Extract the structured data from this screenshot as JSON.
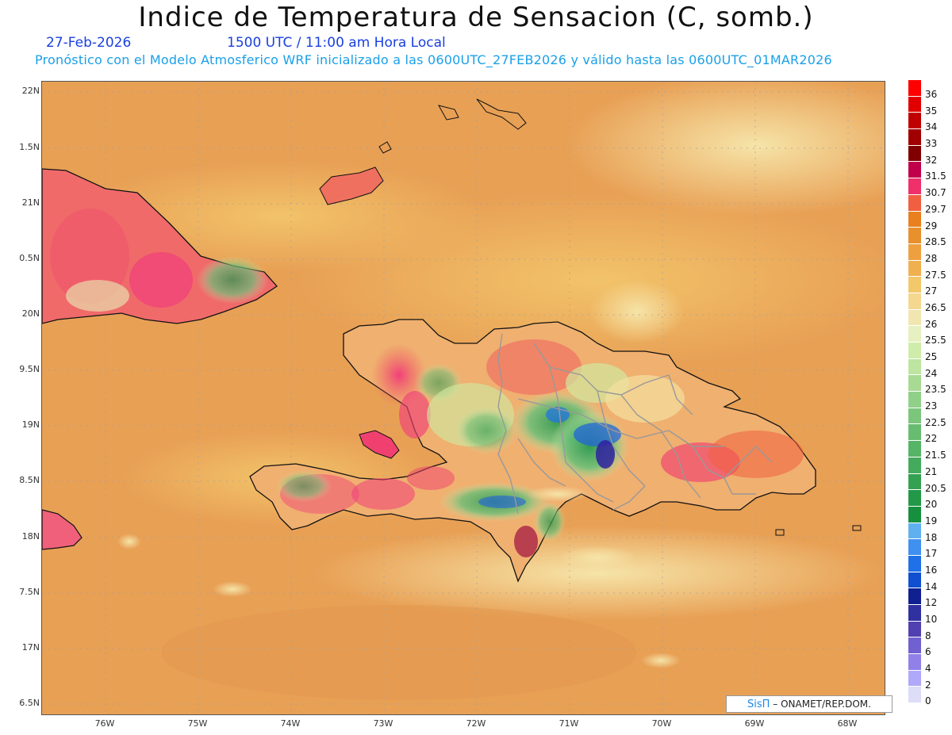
{
  "header": {
    "title": "Indice de Temperatura de Sensacion (C, somb.)",
    "date": "27-Feb-2026",
    "time": "1500 UTC / 11:00 am Hora Local",
    "subtitle": "Pronóstico con el Modelo Atmosferico WRF inicializado a las 0600UTC_27FEB2026 y válido hasta las  0600UTC_01MAR2026"
  },
  "map": {
    "lat_labels": [
      "22N",
      "1.5N",
      "21N",
      "0.5N",
      "20N",
      "9.5N",
      "19N",
      "8.5N",
      "18N",
      "7.5N",
      "17N",
      "6.5N"
    ],
    "lon_labels": [
      "76W",
      "75W",
      "74W",
      "73W",
      "72W",
      "71W",
      "70W",
      "69W",
      "68W"
    ],
    "colors": {
      "ocean_base": "#e8a055",
      "ocean_light": "#efc06a",
      "land_hot": "#f0507a",
      "land_green": "#40b060",
      "land_blue": "#2060e0",
      "coast": "#111111",
      "border": "#999999"
    }
  },
  "colorbar": {
    "labels": [
      "36",
      "35",
      "34",
      "33",
      "32",
      "31.5",
      "30.7",
      "29.7",
      "29",
      "28.5",
      "28",
      "27.5",
      "27",
      "26.5",
      "26",
      "25.5",
      "25",
      "24",
      "23.5",
      "23",
      "22.5",
      "22",
      "21.5",
      "21",
      "20.5",
      "20",
      "19",
      "18",
      "17",
      "16",
      "14",
      "12",
      "10",
      "8",
      "6",
      "4",
      "2",
      "0"
    ],
    "colors": [
      "#ff0000",
      "#e00000",
      "#c00000",
      "#a00000",
      "#800000",
      "#c0004a",
      "#f0306a",
      "#f06040",
      "#e88020",
      "#e8902c",
      "#eea040",
      "#f0b050",
      "#f2c86a",
      "#f4d890",
      "#f2e6b0",
      "#e6f0c0",
      "#d0ecaa",
      "#bde4a0",
      "#a8da94",
      "#90d088",
      "#7cc67c",
      "#68bc70",
      "#56b466",
      "#44aa5c",
      "#34a052",
      "#229848",
      "#16903e",
      "#60b0f0",
      "#4090f0",
      "#2070e8",
      "#1050d0",
      "#102090",
      "#3030a0",
      "#5040b0",
      "#7060d0",
      "#9080e8",
      "#b0a8f8",
      "#ddddf8"
    ]
  },
  "credit": {
    "logo": "SisΠ",
    "text": "– ONAMET/REP.DOM."
  }
}
